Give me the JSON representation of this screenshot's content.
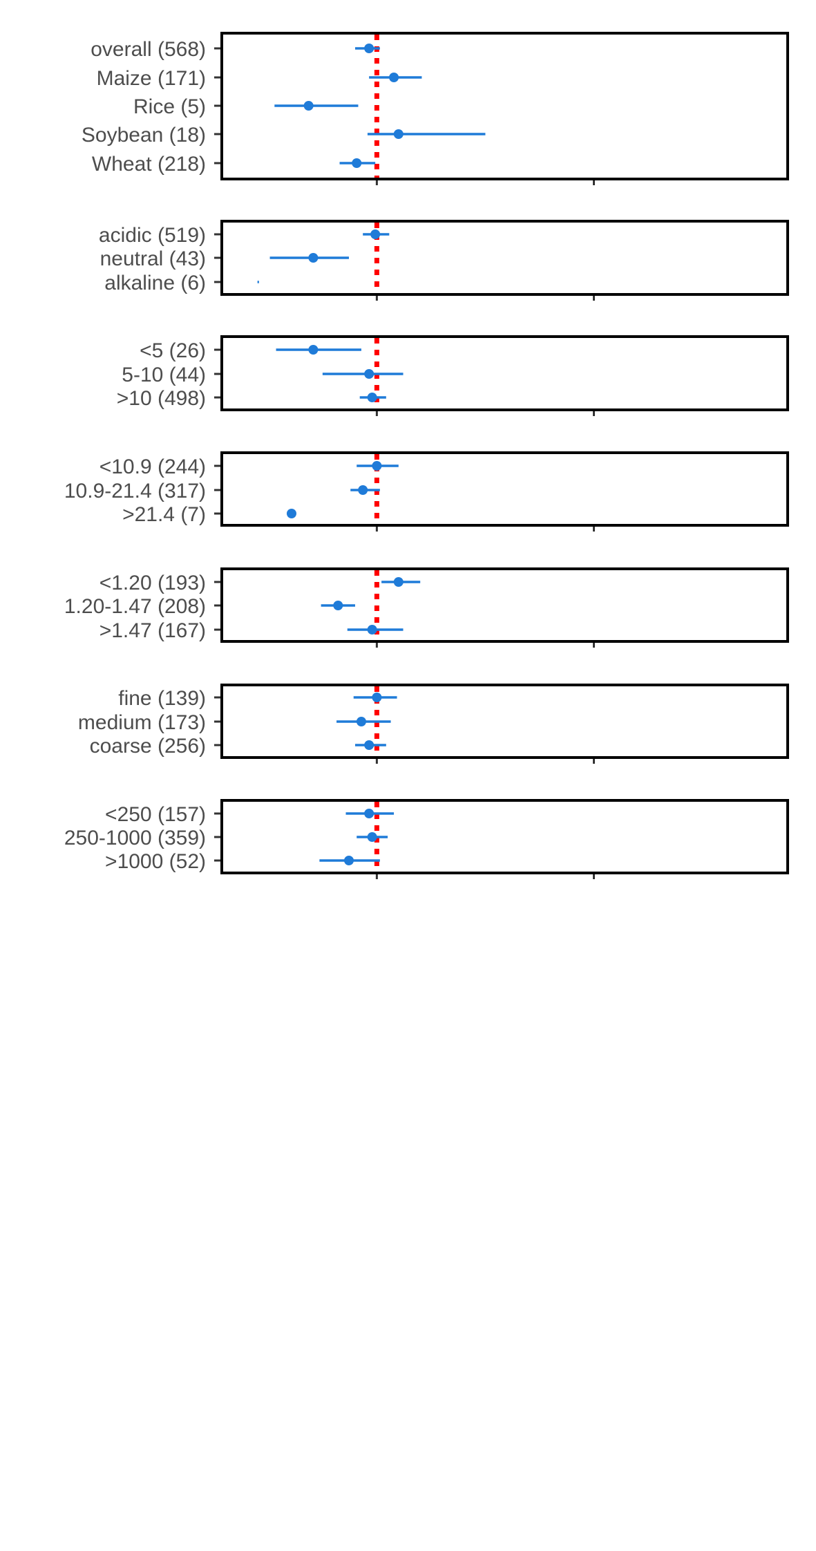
{
  "chart_data": {
    "type": "forest",
    "x_reference": 0,
    "x_range": [
      -1.0,
      2.65
    ],
    "x_ticks": [
      0,
      1.4,
      2.8
    ],
    "colors": {
      "point": "#1f7bd8",
      "reference_line": "#ff0000",
      "frame": "#000000",
      "tick": "#333333"
    },
    "panels": [
      {
        "rows": [
          {
            "label": "overall (568)",
            "est": -0.05,
            "lo": -0.14,
            "hi": 0.02
          },
          {
            "label": "Maize (171)",
            "est": 0.11,
            "lo": -0.05,
            "hi": 0.29
          },
          {
            "label": "Rice (5)",
            "est": -0.44,
            "lo": -0.66,
            "hi": -0.12
          },
          {
            "label": "Soybean (18)",
            "est": 0.14,
            "lo": -0.06,
            "hi": 0.7
          },
          {
            "label": "Wheat (218)",
            "est": -0.13,
            "lo": -0.24,
            "hi": -0.01
          }
        ]
      },
      {
        "rows": [
          {
            "label": "acidic (519)",
            "est": -0.01,
            "lo": -0.09,
            "hi": 0.08
          },
          {
            "label": "neutral (43)",
            "est": -0.41,
            "lo": -0.69,
            "hi": -0.18
          },
          {
            "label": "alkaline (6)",
            "est": -0.77,
            "lo": -0.77,
            "hi": -0.76
          }
        ]
      },
      {
        "rows": [
          {
            "label": "<5 (26)",
            "est": -0.41,
            "lo": -0.65,
            "hi": -0.1
          },
          {
            "label": "5-10 (44)",
            "est": -0.05,
            "lo": -0.35,
            "hi": 0.17
          },
          {
            "label": ">10 (498)",
            "est": -0.03,
            "lo": -0.11,
            "hi": 0.06
          }
        ]
      },
      {
        "rows": [
          {
            "label": "<10.9 (244)",
            "est": 0.0,
            "lo": -0.13,
            "hi": 0.14
          },
          {
            "label": "10.9-21.4 (317)",
            "est": -0.09,
            "lo": -0.17,
            "hi": 0.02
          },
          {
            "label": ">21.4 (7)",
            "est": -0.55,
            "lo": -0.55,
            "hi": -0.55
          }
        ]
      },
      {
        "rows": [
          {
            "label": "<1.20 (193)",
            "est": 0.14,
            "lo": 0.03,
            "hi": 0.28
          },
          {
            "label": "1.20-1.47 (208)",
            "est": -0.25,
            "lo": -0.36,
            "hi": -0.14
          },
          {
            "label": ">1.47 (167)",
            "est": -0.03,
            "lo": -0.19,
            "hi": 0.17
          }
        ]
      },
      {
        "rows": [
          {
            "label": "fine (139)",
            "est": 0.0,
            "lo": -0.15,
            "hi": 0.13
          },
          {
            "label": "medium (173)",
            "est": -0.1,
            "lo": -0.26,
            "hi": 0.09
          },
          {
            "label": "coarse (256)",
            "est": -0.05,
            "lo": -0.14,
            "hi": 0.06
          }
        ]
      },
      {
        "rows": [
          {
            "label": "<250 (157)",
            "est": -0.05,
            "lo": -0.2,
            "hi": 0.11
          },
          {
            "label": "250-1000 (359)",
            "est": -0.03,
            "lo": -0.13,
            "hi": 0.07
          },
          {
            "label": ">1000 (52)",
            "est": -0.18,
            "lo": -0.37,
            "hi": 0.02
          }
        ]
      }
    ]
  }
}
